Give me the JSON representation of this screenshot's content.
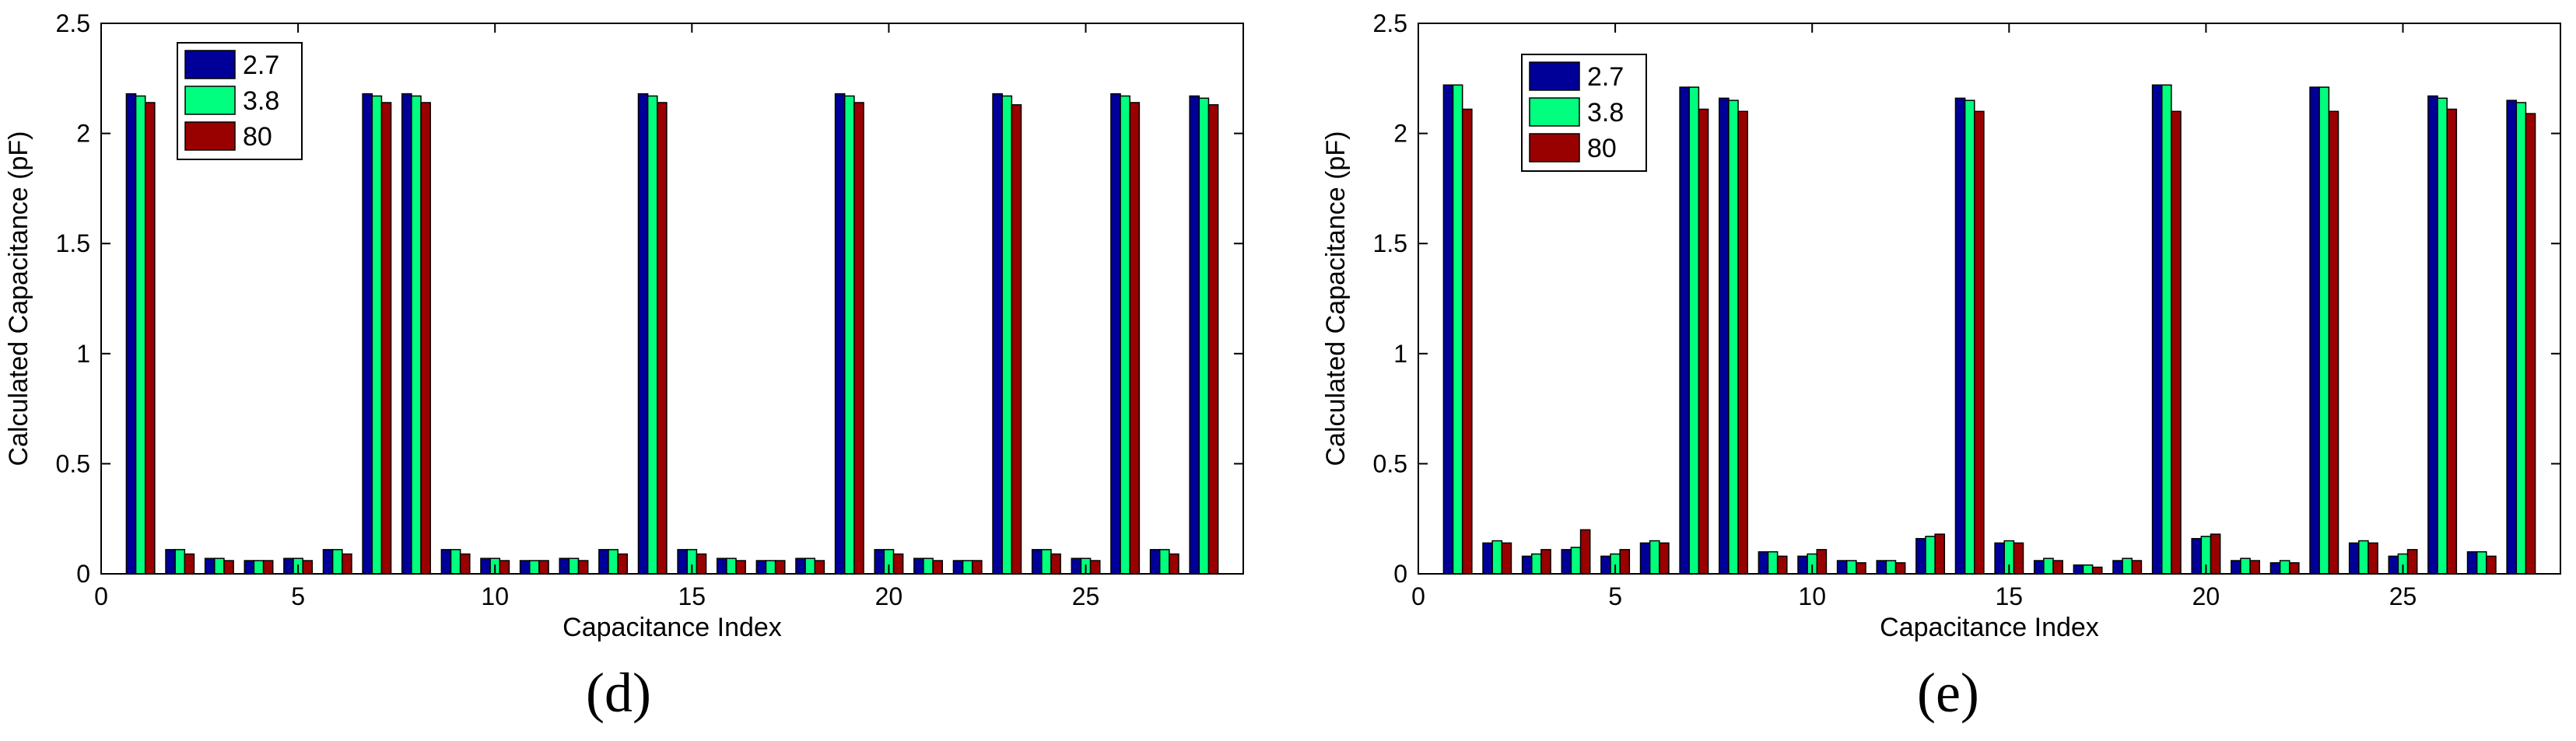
{
  "colors": {
    "s27": "#000099",
    "s38": "#00FF7F",
    "s80": "#990000"
  },
  "chart_data": [
    {
      "type": "bar",
      "panel": "(d)",
      "xlabel": "Capacitance Index",
      "ylabel": "Calculated Capacitance (pF)",
      "xlim": [
        0,
        29
      ],
      "ylim": [
        0,
        2.5
      ],
      "xticks": [
        0,
        5,
        10,
        15,
        20,
        25
      ],
      "yticks": [
        0,
        0.5,
        1,
        1.5,
        2,
        2.5
      ],
      "legend_position": "top-left",
      "categories": [
        1,
        2,
        3,
        4,
        5,
        6,
        7,
        8,
        9,
        10,
        11,
        12,
        13,
        14,
        15,
        16,
        17,
        18,
        19,
        20,
        21,
        22,
        23,
        24,
        25,
        26,
        27,
        28
      ],
      "series": [
        {
          "name": "2.7",
          "values": [
            2.18,
            0.11,
            0.07,
            0.06,
            0.07,
            0.11,
            2.18,
            2.18,
            0.11,
            0.07,
            0.06,
            0.07,
            0.11,
            2.18,
            0.11,
            0.07,
            0.06,
            0.07,
            2.18,
            0.11,
            0.07,
            0.06,
            2.18,
            0.11,
            0.07,
            2.18,
            0.11,
            2.17
          ]
        },
        {
          "name": "3.8",
          "values": [
            2.17,
            0.11,
            0.07,
            0.06,
            0.07,
            0.11,
            2.17,
            2.17,
            0.11,
            0.07,
            0.06,
            0.07,
            0.11,
            2.17,
            0.11,
            0.07,
            0.06,
            0.07,
            2.17,
            0.11,
            0.07,
            0.06,
            2.17,
            0.11,
            0.07,
            2.17,
            0.11,
            2.16
          ]
        },
        {
          "name": "80",
          "values": [
            2.14,
            0.09,
            0.06,
            0.06,
            0.06,
            0.09,
            2.14,
            2.14,
            0.09,
            0.06,
            0.06,
            0.06,
            0.09,
            2.14,
            0.09,
            0.06,
            0.06,
            0.06,
            2.14,
            0.09,
            0.06,
            0.06,
            2.13,
            0.09,
            0.06,
            2.14,
            0.09,
            2.13
          ]
        }
      ]
    },
    {
      "type": "bar",
      "panel": "(e)",
      "xlabel": "Capacitance Index",
      "ylabel": "Calculated Capacitance (pF)",
      "xlim": [
        0,
        29
      ],
      "ylim": [
        0,
        2.5
      ],
      "xticks": [
        0,
        5,
        10,
        15,
        20,
        25
      ],
      "yticks": [
        0,
        0.5,
        1,
        1.5,
        2,
        2.5
      ],
      "legend_position": "top-left",
      "categories": [
        1,
        2,
        3,
        4,
        5,
        6,
        7,
        8,
        9,
        10,
        11,
        12,
        13,
        14,
        15,
        16,
        17,
        18,
        19,
        20,
        21,
        22,
        23,
        24,
        25,
        26,
        27,
        28
      ],
      "series": [
        {
          "name": "2.7",
          "values": [
            2.22,
            0.14,
            0.08,
            0.11,
            0.08,
            0.14,
            2.21,
            2.16,
            0.1,
            0.08,
            0.06,
            0.06,
            0.16,
            2.16,
            0.14,
            0.06,
            0.04,
            0.06,
            2.22,
            0.16,
            0.06,
            0.05,
            2.21,
            0.14,
            0.08,
            2.17,
            0.1,
            2.15
          ]
        },
        {
          "name": "3.8",
          "values": [
            2.22,
            0.15,
            0.09,
            0.12,
            0.09,
            0.15,
            2.21,
            2.15,
            0.1,
            0.09,
            0.06,
            0.06,
            0.17,
            2.15,
            0.15,
            0.07,
            0.04,
            0.07,
            2.22,
            0.17,
            0.07,
            0.06,
            2.21,
            0.15,
            0.09,
            2.16,
            0.1,
            2.14
          ]
        },
        {
          "name": "80",
          "values": [
            2.11,
            0.14,
            0.11,
            0.2,
            0.11,
            0.14,
            2.11,
            2.1,
            0.08,
            0.11,
            0.05,
            0.05,
            0.18,
            2.1,
            0.14,
            0.06,
            0.03,
            0.06,
            2.1,
            0.18,
            0.06,
            0.05,
            2.1,
            0.14,
            0.11,
            2.11,
            0.08,
            2.09
          ]
        }
      ]
    }
  ]
}
